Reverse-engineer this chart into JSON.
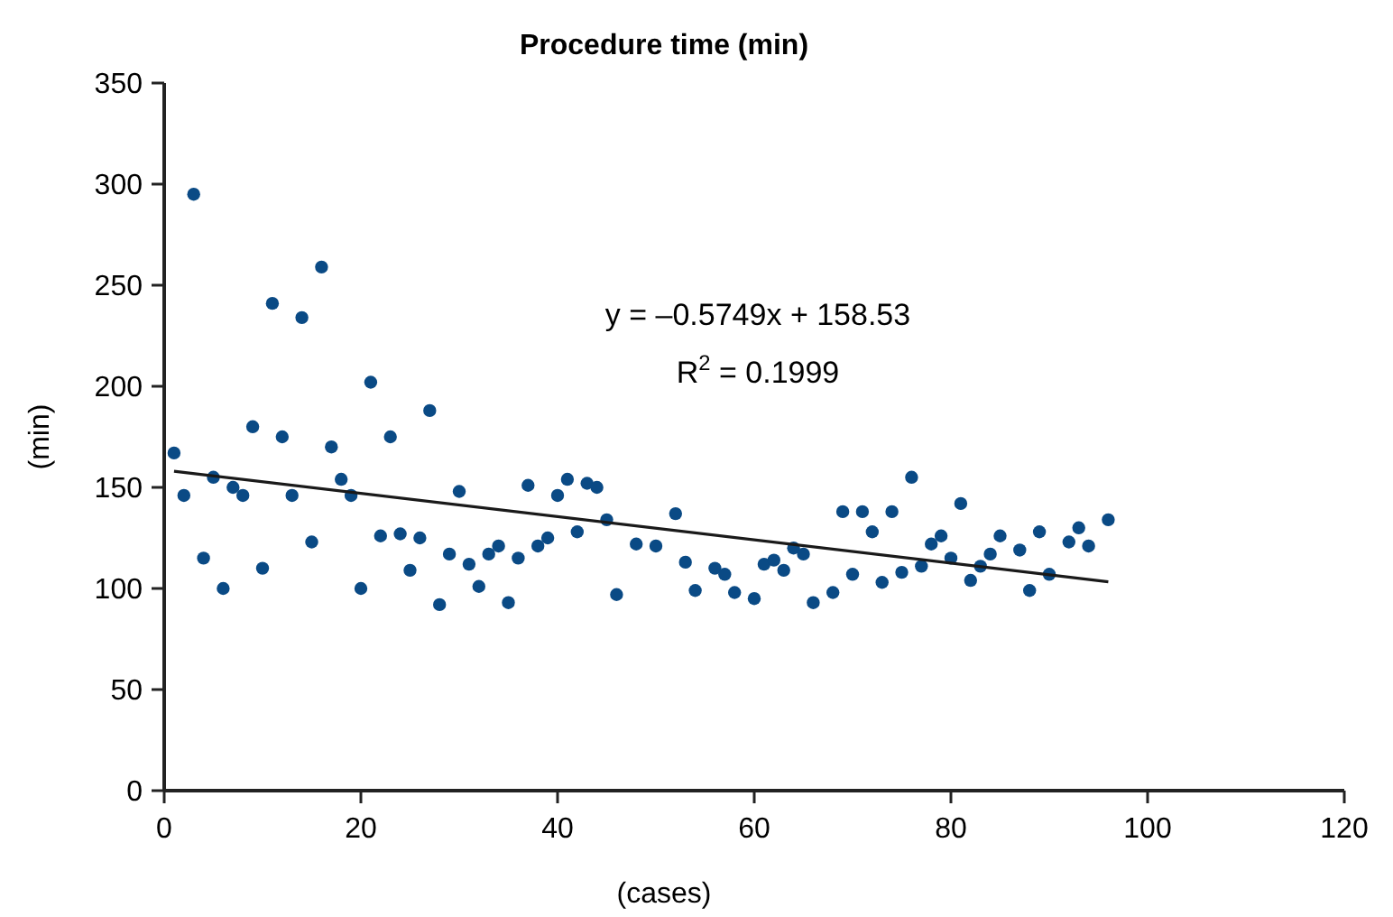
{
  "chart_data": {
    "type": "scatter",
    "title": "Procedure time (min)",
    "xlabel": "(cases)",
    "ylabel": "(min)",
    "xlim": [
      0,
      120
    ],
    "xticks": [
      0,
      20,
      40,
      60,
      80,
      100,
      120
    ],
    "ylim": [
      0,
      350
    ],
    "yticks": [
      0,
      50,
      100,
      150,
      200,
      250,
      300,
      350
    ],
    "grid": false,
    "annotations": [
      "y = –0.5749x + 158.53",
      "R$^{2}$ = 0.1999"
    ],
    "series": [
      {
        "marker": "circle",
        "color": "#0a4a85",
        "x": [
          1,
          2,
          3,
          4,
          5,
          6,
          7,
          8,
          9,
          10,
          11,
          12,
          13,
          14,
          15,
          16,
          17,
          18,
          19,
          20,
          21,
          22,
          23,
          24,
          25,
          26,
          27,
          28,
          29,
          30,
          31,
          32,
          33,
          34,
          35,
          36,
          37,
          38,
          39,
          40,
          41,
          42,
          43,
          44,
          45,
          46,
          48,
          50,
          52,
          53,
          54,
          56,
          57,
          58,
          60,
          61,
          62,
          63,
          64,
          65,
          66,
          68,
          69,
          70,
          71,
          72,
          73,
          74,
          75,
          76,
          77,
          78,
          79,
          80,
          81,
          82,
          83,
          84,
          85,
          87,
          88,
          89,
          90,
          92,
          93,
          94,
          96
        ],
        "values": [
          167,
          146,
          295,
          115,
          155,
          100,
          150,
          146,
          180,
          110,
          241,
          175,
          146,
          234,
          123,
          259,
          170,
          154,
          146,
          100,
          202,
          126,
          175,
          127,
          109,
          125,
          188,
          92,
          117,
          148,
          112,
          101,
          117,
          121,
          93,
          115,
          151,
          121,
          125,
          146,
          154,
          128,
          152,
          150,
          134,
          97,
          122,
          121,
          137,
          113,
          99,
          110,
          107,
          98,
          95,
          112,
          114,
          109,
          120,
          117,
          93,
          98,
          138,
          107,
          138,
          128,
          103,
          138,
          108,
          155,
          111,
          122,
          126,
          115,
          142,
          104,
          111,
          117,
          126,
          119,
          99,
          128,
          107,
          123,
          130,
          121,
          134
        ]
      },
      {
        "type": "line",
        "color": "#1a1a1a",
        "x": [
          1,
          96
        ],
        "values": [
          158,
          103.3
        ]
      }
    ]
  }
}
